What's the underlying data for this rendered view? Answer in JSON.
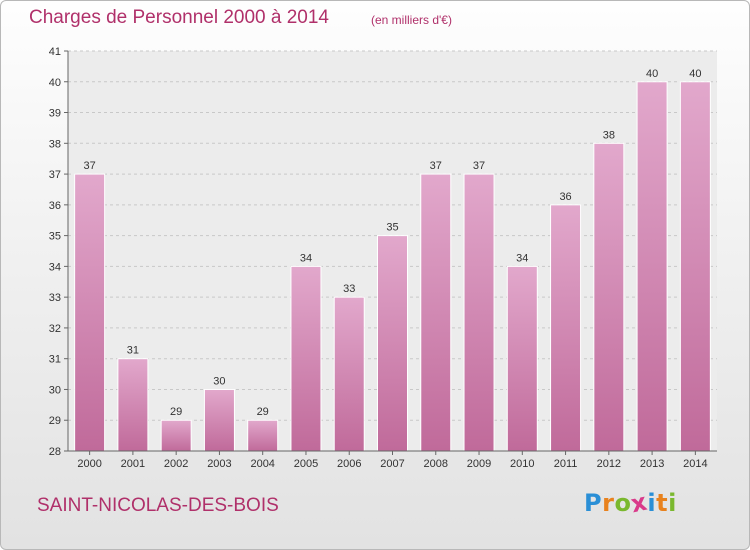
{
  "chart_data": {
    "type": "bar",
    "title": "Charges de Personnel 2000 à 2014",
    "subtitle": "(en milliers d'€)",
    "categories": [
      "2000",
      "2001",
      "2002",
      "2003",
      "2004",
      "2005",
      "2006",
      "2007",
      "2008",
      "2009",
      "2010",
      "2011",
      "2012",
      "2013",
      "2014"
    ],
    "values": [
      37,
      31,
      29,
      30,
      29,
      34,
      33,
      35,
      37,
      37,
      34,
      36,
      38,
      40,
      40
    ],
    "data_labels": [
      "37",
      "31",
      "29",
      "30",
      "29",
      "34",
      "33",
      "35",
      "37",
      "37",
      "34",
      "36",
      "38",
      "40",
      "40"
    ],
    "ylim": [
      28,
      41
    ],
    "yticks": [
      28,
      29,
      30,
      31,
      32,
      33,
      34,
      35,
      36,
      37,
      38,
      39,
      40,
      41
    ],
    "grid": true,
    "bar_color": "#c06a9a",
    "bar_color_light": "#e2a8cc",
    "text_color": "#b0306a"
  },
  "footer": {
    "place": "SAINT-NICOLAS-DES-BOIS",
    "logo_letters": [
      "P",
      "r",
      "o",
      "x",
      "i",
      "t",
      "i"
    ],
    "logo_colors": [
      "#2a8fd6",
      "#e8821e",
      "#7ab82e",
      "#d93a8a",
      "#2a8fd6",
      "#e8821e",
      "#7ab82e"
    ]
  }
}
